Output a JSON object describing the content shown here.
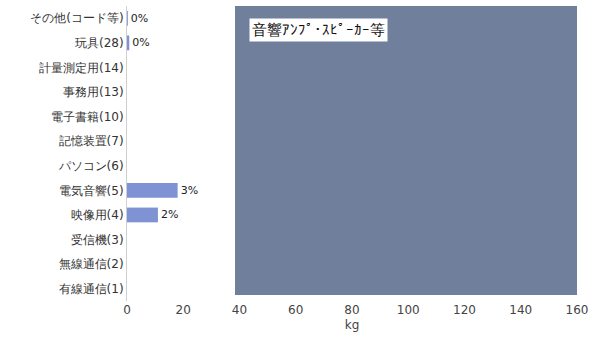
{
  "chart_data": {
    "type": "bar",
    "orientation": "horizontal",
    "categories": [
      "その他(コード等)",
      "玩具(28)",
      "計量測定用(14)",
      "事務用(13)",
      "電子書籍(10)",
      "記憶装置(7)",
      "パソコン(6)",
      "電気音響(5)",
      "映像用(4)",
      "受信機(3)",
      "無線通信(2)",
      "有線通信(1)"
    ],
    "values": [
      0.3,
      0.8,
      0,
      0,
      0,
      0,
      0,
      18,
      11,
      0,
      0,
      0
    ],
    "share_labels": [
      "0%",
      "0%",
      null,
      null,
      null,
      null,
      null,
      "3%",
      "2%",
      null,
      null,
      null
    ],
    "color": "#7f93d4",
    "x_label": "kg",
    "xlim": [
      0,
      160
    ],
    "xticks": [
      0,
      20,
      40,
      60,
      80,
      100,
      120,
      140,
      160
    ],
    "grid": false,
    "annotations": [
      {
        "text": "音響ｱﾝﾌﾟ･ｽﾋﾟｰｶｰ等"
      }
    ]
  }
}
